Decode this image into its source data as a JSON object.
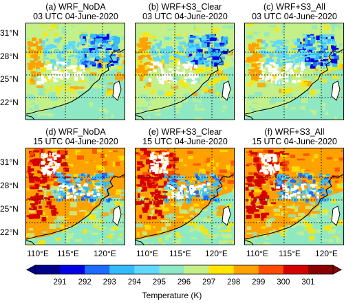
{
  "panels": [
    {
      "id": "a",
      "title1": "(a) WRF_NoDA",
      "title2": "03 UTC 04-June-2020"
    },
    {
      "id": "b",
      "title1": "(b) WRF+S3_Clear",
      "title2": "03 UTC 04-June-2020"
    },
    {
      "id": "c",
      "title1": "(c) WRF+S3_All",
      "title2": "03 UTC 04-June-2020"
    },
    {
      "id": "d",
      "title1": "(d) WRF_NoDA",
      "title2": "15 UTC 04-June-2020"
    },
    {
      "id": "e",
      "title1": "(e) WRF+S3_Clear",
      "title2": "15 UTC 04-June-2020"
    },
    {
      "id": "f",
      "title1": "(f) WRF+S3_All",
      "title2": "15 UTC 04-June-2020"
    }
  ],
  "lat_ticks": [
    "31°N",
    "28°N",
    "25°N",
    "22°N"
  ],
  "lon_ticks": [
    "110°E",
    "115°E",
    "120°E"
  ],
  "colorbar": {
    "label": "Temperature (K)",
    "ticks": [
      "291",
      "292",
      "293",
      "294",
      "295",
      "296",
      "297",
      "298",
      "299",
      "300",
      "301"
    ],
    "colors": [
      "#00008b",
      "#0000e6",
      "#1e6cff",
      "#33bbff",
      "#5fd9ff",
      "#8ee8c4",
      "#c4f08a",
      "#ffe500",
      "#ffa200",
      "#ff4a00",
      "#d40000",
      "#8b0000"
    ]
  }
}
